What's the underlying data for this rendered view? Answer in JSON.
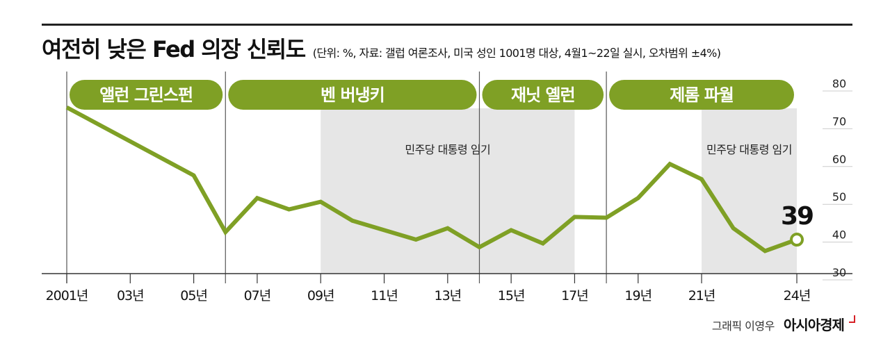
{
  "title": "여전히 낮은 Fed 의장 신뢰도",
  "subtitle": "(단위: %, 자료: 갤럽 여론조사, 미국 성인 1001명 대상, 4월1~22일 실시, 오차범위 ±4%)",
  "credit": {
    "graphic": "그래픽 이영우",
    "brand": "아시아경제"
  },
  "colors": {
    "line": "#7fa025",
    "pill": "#7fa025",
    "shade": "#e6e6e6",
    "axis": "#333333"
  },
  "chart_data": {
    "type": "line",
    "title": "여전히 낮은 Fed 의장 신뢰도",
    "ylim": [
      30,
      80
    ],
    "y_ticks": [
      "80",
      "70",
      "60",
      "50",
      "40",
      "30"
    ],
    "x_ticks": [
      {
        "year": 2001,
        "label": "2001년"
      },
      {
        "year": 2003,
        "label": "03년"
      },
      {
        "year": 2005,
        "label": "05년"
      },
      {
        "year": 2007,
        "label": "07년"
      },
      {
        "year": 2009,
        "label": "09년"
      },
      {
        "year": 2011,
        "label": "11년"
      },
      {
        "year": 2013,
        "label": "13년"
      },
      {
        "year": 2015,
        "label": "15년"
      },
      {
        "year": 2017,
        "label": "17년"
      },
      {
        "year": 2019,
        "label": "19년"
      },
      {
        "year": 2021,
        "label": "21년"
      },
      {
        "year": 2024,
        "label": "24년"
      }
    ],
    "points": [
      {
        "x": 2001,
        "y": 74
      },
      {
        "x": 2005,
        "y": 56
      },
      {
        "x": 2006,
        "y": 41
      },
      {
        "x": 2007,
        "y": 50
      },
      {
        "x": 2008,
        "y": 47
      },
      {
        "x": 2009,
        "y": 49
      },
      {
        "x": 2010,
        "y": 44
      },
      {
        "x": 2012,
        "y": 39
      },
      {
        "x": 2013,
        "y": 42
      },
      {
        "x": 2014,
        "y": 37
      },
      {
        "x": 2015,
        "y": 41.5
      },
      {
        "x": 2016,
        "y": 38
      },
      {
        "x": 2017,
        "y": 45
      },
      {
        "x": 2018,
        "y": 44.8
      },
      {
        "x": 2019,
        "y": 50
      },
      {
        "x": 2020,
        "y": 59
      },
      {
        "x": 2021,
        "y": 55
      },
      {
        "x": 2022,
        "y": 42
      },
      {
        "x": 2023,
        "y": 36
      },
      {
        "x": 2024,
        "y": 39
      }
    ],
    "final_label": "39",
    "eras": [
      {
        "name": "앨런 그린스펀",
        "start": 2001,
        "end": 2006
      },
      {
        "name": "벤 버냉키",
        "start": 2006,
        "end": 2014
      },
      {
        "name": "재닛 옐런",
        "start": 2014,
        "end": 2018
      },
      {
        "name": "제롬 파월",
        "start": 2018,
        "end": 2024
      }
    ],
    "dem_periods": [
      {
        "label": "민주당 대통령 임기",
        "start": 2009,
        "end": 2017
      },
      {
        "label": "민주당 대통령 임기",
        "start": 2021,
        "end": 2024
      }
    ]
  }
}
